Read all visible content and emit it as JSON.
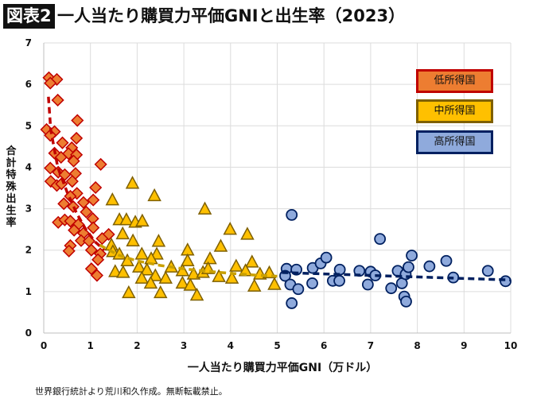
{
  "header": {
    "badge": "図表2",
    "title": "一人当たり購買力平価GNIと出生率（2023）"
  },
  "source_note": "世界銀行統計より荒川和久作成。無断転載禁止。",
  "chart_data": {
    "type": "scatter",
    "title": "一人当たり購買力平価GNIと出生率（2023）",
    "xlabel": "一人当たり購買力平価GNI（万ドル）",
    "ylabel": "合計特殊出生率",
    "xlim": [
      0,
      10
    ],
    "ylim": [
      0,
      7
    ],
    "xticks": [
      "0",
      "1",
      "2",
      "3",
      "4",
      "5",
      "6",
      "7",
      "8",
      "9",
      "10"
    ],
    "yticks": [
      "0",
      "1",
      "2",
      "3",
      "4",
      "5",
      "6",
      "7"
    ],
    "grid": true,
    "legend_position": "top-right",
    "series": [
      {
        "name": "低所得国",
        "marker": "diamond",
        "fill": "#ED7D31",
        "stroke": "#C00000",
        "points": [
          [
            0.11,
            6.16
          ],
          [
            0.28,
            6.12
          ],
          [
            0.14,
            6.03
          ],
          [
            0.3,
            5.62
          ],
          [
            0.72,
            5.13
          ],
          [
            0.06,
            4.91
          ],
          [
            0.23,
            4.86
          ],
          [
            0.14,
            4.77
          ],
          [
            0.7,
            4.7
          ],
          [
            0.4,
            4.59
          ],
          [
            0.6,
            4.47
          ],
          [
            0.23,
            4.34
          ],
          [
            0.53,
            4.33
          ],
          [
            0.7,
            4.3
          ],
          [
            0.37,
            4.24
          ],
          [
            0.64,
            4.15
          ],
          [
            1.22,
            4.07
          ],
          [
            0.14,
            3.98
          ],
          [
            0.31,
            3.88
          ],
          [
            0.68,
            3.85
          ],
          [
            0.45,
            3.82
          ],
          [
            0.15,
            3.66
          ],
          [
            0.61,
            3.66
          ],
          [
            0.28,
            3.56
          ],
          [
            0.38,
            3.6
          ],
          [
            1.11,
            3.51
          ],
          [
            0.71,
            3.37
          ],
          [
            0.57,
            3.3
          ],
          [
            0.85,
            3.15
          ],
          [
            1.06,
            3.21
          ],
          [
            0.43,
            3.12
          ],
          [
            0.63,
            3.05
          ],
          [
            0.91,
            2.92
          ],
          [
            1.05,
            2.76
          ],
          [
            0.31,
            2.67
          ],
          [
            0.45,
            2.73
          ],
          [
            0.57,
            2.7
          ],
          [
            0.74,
            2.62
          ],
          [
            1.06,
            2.54
          ],
          [
            0.65,
            2.48
          ],
          [
            0.85,
            2.41
          ],
          [
            1.39,
            2.38
          ],
          [
            1.25,
            2.28
          ],
          [
            0.8,
            2.23
          ],
          [
            0.97,
            2.22
          ],
          [
            0.57,
            2.11
          ],
          [
            0.54,
            1.98
          ],
          [
            1.02,
            2.0
          ],
          [
            1.21,
            1.91
          ],
          [
            1.16,
            1.77
          ],
          [
            1.02,
            1.55
          ],
          [
            1.14,
            1.39
          ]
        ],
        "trend": [
          [
            0.1,
            5.7
          ],
          [
            0.15,
            4.9
          ],
          [
            0.3,
            4.0
          ],
          [
            0.5,
            3.4
          ],
          [
            0.7,
            2.9
          ],
          [
            0.9,
            2.5
          ],
          [
            1.1,
            2.2
          ],
          [
            1.3,
            2.0
          ]
        ]
      },
      {
        "name": "中所得国",
        "marker": "triangle",
        "fill": "#FFC000",
        "stroke": "#7F6000",
        "points": [
          [
            1.9,
            3.61
          ],
          [
            1.47,
            3.21
          ],
          [
            2.37,
            3.31
          ],
          [
            3.45,
            2.99
          ],
          [
            1.62,
            2.73
          ],
          [
            1.77,
            2.73
          ],
          [
            1.96,
            2.67
          ],
          [
            2.11,
            2.7
          ],
          [
            3.99,
            2.5
          ],
          [
            4.36,
            2.38
          ],
          [
            1.69,
            2.39
          ],
          [
            1.91,
            2.22
          ],
          [
            2.46,
            2.21
          ],
          [
            3.79,
            2.09
          ],
          [
            3.08,
            2.0
          ],
          [
            1.45,
            2.12
          ],
          [
            1.48,
            1.96
          ],
          [
            1.62,
            1.9
          ],
          [
            2.1,
            1.9
          ],
          [
            2.42,
            1.9
          ],
          [
            3.56,
            1.79
          ],
          [
            1.79,
            1.74
          ],
          [
            2.3,
            1.79
          ],
          [
            3.08,
            1.74
          ],
          [
            4.46,
            1.71
          ],
          [
            2.73,
            1.59
          ],
          [
            2.04,
            1.59
          ],
          [
            4.12,
            1.61
          ],
          [
            1.53,
            1.48
          ],
          [
            1.7,
            1.46
          ],
          [
            2.21,
            1.52
          ],
          [
            2.97,
            1.5
          ],
          [
            3.21,
            1.42
          ],
          [
            3.41,
            1.46
          ],
          [
            3.52,
            1.55
          ],
          [
            4.32,
            1.5
          ],
          [
            4.63,
            1.42
          ],
          [
            4.83,
            1.45
          ],
          [
            2.1,
            1.32
          ],
          [
            2.39,
            1.38
          ],
          [
            2.61,
            1.32
          ],
          [
            3.75,
            1.36
          ],
          [
            4.03,
            1.32
          ],
          [
            2.97,
            1.2
          ],
          [
            3.14,
            1.15
          ],
          [
            2.29,
            1.2
          ],
          [
            4.51,
            1.13
          ],
          [
            4.94,
            1.17
          ],
          [
            1.82,
            0.97
          ],
          [
            2.5,
            0.97
          ],
          [
            3.28,
            0.91
          ]
        ],
        "trend": [
          [
            1.2,
            2.12
          ],
          [
            1.6,
            1.88
          ],
          [
            2.0,
            1.74
          ],
          [
            2.5,
            1.63
          ],
          [
            3.0,
            1.55
          ],
          [
            3.5,
            1.49
          ],
          [
            4.0,
            1.44
          ],
          [
            4.5,
            1.4
          ],
          [
            5.0,
            1.37
          ]
        ]
      },
      {
        "name": "高所得国",
        "marker": "circle",
        "fill": "#8FAADC",
        "stroke": "#002060",
        "points": [
          [
            5.31,
            2.85
          ],
          [
            7.2,
            2.27
          ],
          [
            5.2,
            1.55
          ],
          [
            5.17,
            1.38
          ],
          [
            5.41,
            1.53
          ],
          [
            5.28,
            1.17
          ],
          [
            5.45,
            1.06
          ],
          [
            5.31,
            0.72
          ],
          [
            5.76,
            1.57
          ],
          [
            5.75,
            1.2
          ],
          [
            5.93,
            1.68
          ],
          [
            6.05,
            1.82
          ],
          [
            6.19,
            1.26
          ],
          [
            6.34,
            1.53
          ],
          [
            6.33,
            1.26
          ],
          [
            6.76,
            1.5
          ],
          [
            7.0,
            1.48
          ],
          [
            6.94,
            1.17
          ],
          [
            7.1,
            1.39
          ],
          [
            7.44,
            1.08
          ],
          [
            7.58,
            1.5
          ],
          [
            7.67,
            1.2
          ],
          [
            7.75,
            1.42
          ],
          [
            7.81,
            1.59
          ],
          [
            7.88,
            1.87
          ],
          [
            7.72,
            0.88
          ],
          [
            7.76,
            0.76
          ],
          [
            8.26,
            1.61
          ],
          [
            8.62,
            1.74
          ],
          [
            8.77,
            1.34
          ],
          [
            9.51,
            1.5
          ],
          [
            9.89,
            1.25
          ]
        ],
        "trend": [
          [
            5.1,
            1.46
          ],
          [
            10.0,
            1.28
          ]
        ]
      }
    ]
  }
}
